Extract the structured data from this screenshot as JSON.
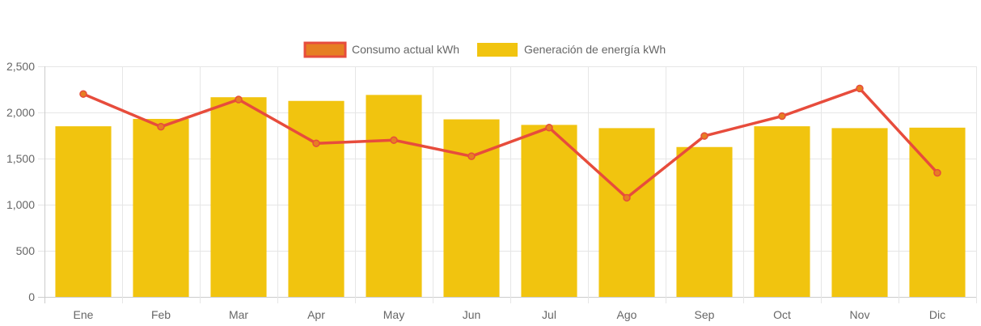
{
  "chart_data": {
    "type": "bar",
    "categories": [
      "Ene",
      "Feb",
      "Mar",
      "Apr",
      "May",
      "Jun",
      "Jul",
      "Ago",
      "Sep",
      "Oct",
      "Nov",
      "Dic"
    ],
    "series": [
      {
        "name": "Consumo actual kWh",
        "type": "line",
        "values": [
          2200,
          1845,
          2140,
          1665,
          1700,
          1525,
          1835,
          1075,
          1745,
          1960,
          2260,
          1345
        ],
        "line_color": "#E74C3C",
        "point_color": "#E67E22"
      },
      {
        "name": "Generación de energía kWh",
        "type": "bar",
        "values": [
          1850,
          1930,
          2165,
          2125,
          2190,
          1925,
          1865,
          1830,
          1625,
          1850,
          1830,
          1835
        ],
        "color": "#F1C40F"
      }
    ],
    "y_ticks": [
      0,
      500,
      1000,
      1500,
      2000,
      2500
    ],
    "y_tick_labels": [
      "0",
      "500",
      "1,000",
      "1,500",
      "2,000",
      "2,500"
    ],
    "ylim": [
      0,
      2500
    ],
    "grid": true,
    "legend_position": "top-center",
    "title": "",
    "xlabel": "",
    "ylabel": ""
  }
}
